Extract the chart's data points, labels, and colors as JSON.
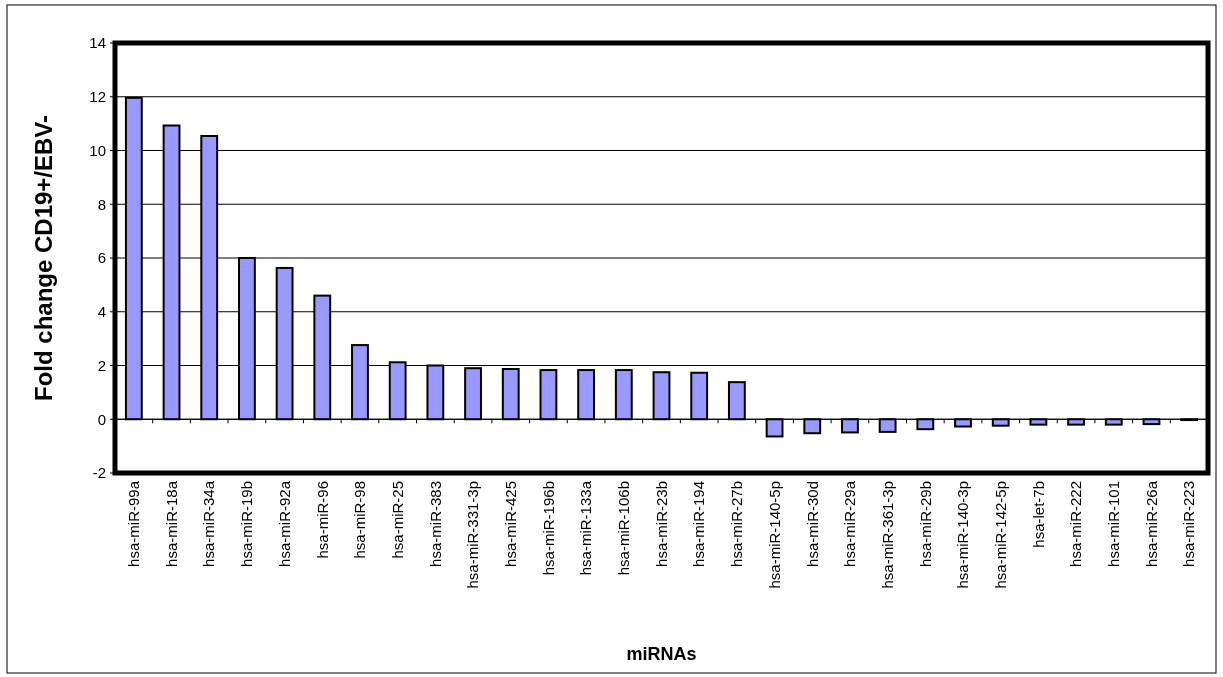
{
  "chart_data": {
    "type": "bar",
    "xlabel": "miRNAs",
    "ylabel": "Fold change CD19+/EBV-",
    "categories": [
      "hsa-miR-99a",
      "hsa-miR-18a",
      "hsa-miR-34a",
      "hsa-miR-19b",
      "hsa-miR-92a",
      "hsa-miR-96",
      "hsa-miR-98",
      "hsa-miR-25",
      "hsa-miR-383",
      "hsa-miR-331-3p",
      "hsa-miR-425",
      "hsa-miR-196b",
      "hsa-miR-133a",
      "hsa-miR-106b",
      "hsa-miR-23b",
      "hsa-miR-194",
      "hsa-miR-27b",
      "hsa-miR-140-5p",
      "hsa-miR-30d",
      "hsa-miR-29a",
      "hsa-miR-361-3p",
      "hsa-miR-29b",
      "hsa-miR-140-3p",
      "hsa-miR-142-5p",
      "hsa-let-7b",
      "hsa-miR-222",
      "hsa-miR-101",
      "hsa-miR-26a",
      "hsa-miR-223"
    ],
    "values": [
      11.96,
      10.93,
      10.54,
      6.0,
      5.63,
      4.6,
      2.76,
      2.12,
      2.0,
      1.9,
      1.87,
      1.83,
      1.83,
      1.83,
      1.75,
      1.73,
      1.38,
      -0.64,
      -0.52,
      -0.49,
      -0.47,
      -0.37,
      -0.27,
      -0.24,
      -0.2,
      -0.2,
      -0.2,
      -0.18,
      -0.03
    ],
    "color": "#9999ff",
    "ylim": [
      -2,
      14
    ],
    "yticks": [
      -2,
      0,
      2,
      4,
      6,
      8,
      10,
      12,
      14
    ],
    "grid": "y"
  }
}
